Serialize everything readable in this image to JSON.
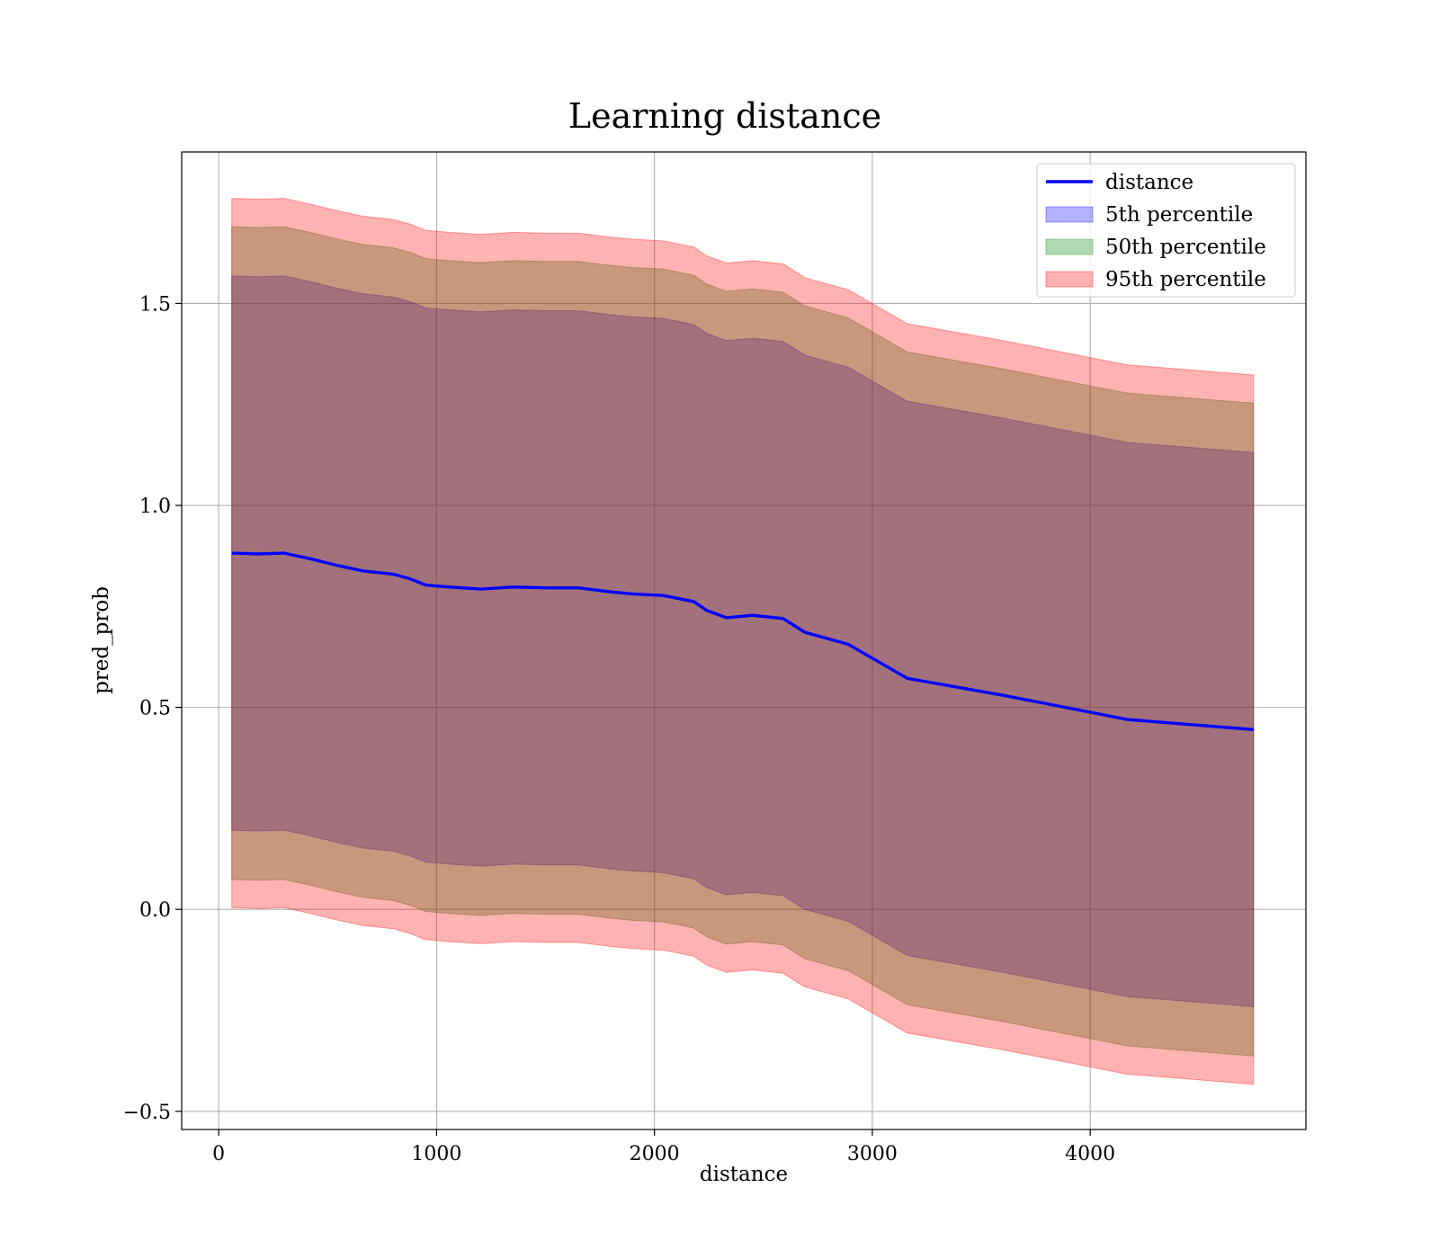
{
  "chart_data": {
    "type": "area",
    "title": "Learning distance",
    "xlabel": "distance",
    "ylabel": "pred_prob",
    "xlim": [
      -170,
      4990
    ],
    "ylim": [
      -0.545,
      1.875
    ],
    "xticks": [
      0,
      1000,
      2000,
      3000,
      4000
    ],
    "xtick_labels": [
      "0",
      "1000",
      "2000",
      "3000",
      "4000"
    ],
    "yticks": [
      -0.5,
      0.0,
      0.5,
      1.0,
      1.5
    ],
    "ytick_labels": [
      "−0.5",
      "0.0",
      "0.5",
      "1.0",
      "1.5"
    ],
    "grid": true,
    "legend_position": "top-right",
    "x": [
      60,
      180,
      300,
      420,
      540,
      660,
      800,
      880,
      950,
      1060,
      1200,
      1350,
      1500,
      1650,
      1800,
      1900,
      2040,
      2180,
      2240,
      2330,
      2450,
      2590,
      2690,
      2890,
      3160,
      3600,
      4000,
      4170,
      4750
    ],
    "series": [
      {
        "name": "distance",
        "kind": "line",
        "color": "#0000ff",
        "values": [
          0.882,
          0.88,
          0.882,
          0.868,
          0.852,
          0.838,
          0.83,
          0.818,
          0.803,
          0.798,
          0.793,
          0.798,
          0.796,
          0.796,
          0.786,
          0.781,
          0.777,
          0.762,
          0.74,
          0.722,
          0.728,
          0.72,
          0.686,
          0.656,
          0.572,
          0.53,
          0.488,
          0.47,
          0.445
        ]
      },
      {
        "name": "5th percentile",
        "kind": "band",
        "color": "#0000ff",
        "opacity": 0.3,
        "lower": [
          0.196,
          0.194,
          0.196,
          0.182,
          0.166,
          0.152,
          0.144,
          0.132,
          0.117,
          0.112,
          0.107,
          0.112,
          0.11,
          0.11,
          0.1,
          0.095,
          0.091,
          0.076,
          0.054,
          0.036,
          0.042,
          0.034,
          0.0,
          -0.03,
          -0.114,
          -0.156,
          -0.198,
          -0.216,
          -0.241
        ],
        "upper": [
          1.568,
          1.566,
          1.568,
          1.554,
          1.538,
          1.524,
          1.516,
          1.504,
          1.489,
          1.484,
          1.479,
          1.484,
          1.482,
          1.482,
          1.472,
          1.467,
          1.463,
          1.448,
          1.426,
          1.408,
          1.414,
          1.406,
          1.372,
          1.342,
          1.258,
          1.216,
          1.174,
          1.156,
          1.131
        ]
      },
      {
        "name": "50th percentile",
        "kind": "band",
        "color": "#008000",
        "opacity": 0.3,
        "lower": [
          0.074,
          0.072,
          0.074,
          0.06,
          0.044,
          0.03,
          0.022,
          0.01,
          -0.005,
          -0.01,
          -0.015,
          -0.01,
          -0.012,
          -0.012,
          -0.022,
          -0.027,
          -0.031,
          -0.046,
          -0.068,
          -0.086,
          -0.08,
          -0.088,
          -0.122,
          -0.152,
          -0.236,
          -0.278,
          -0.32,
          -0.338,
          -0.363
        ],
        "upper": [
          1.69,
          1.688,
          1.69,
          1.676,
          1.66,
          1.646,
          1.638,
          1.626,
          1.611,
          1.606,
          1.601,
          1.606,
          1.604,
          1.604,
          1.594,
          1.589,
          1.585,
          1.57,
          1.548,
          1.53,
          1.536,
          1.528,
          1.494,
          1.464,
          1.38,
          1.338,
          1.296,
          1.278,
          1.253
        ]
      },
      {
        "name": "95th percentile",
        "kind": "band",
        "color": "#ff0000",
        "opacity": 0.3,
        "lower": [
          0.004,
          0.002,
          0.004,
          -0.01,
          -0.026,
          -0.04,
          -0.048,
          -0.06,
          -0.075,
          -0.08,
          -0.085,
          -0.08,
          -0.082,
          -0.082,
          -0.092,
          -0.097,
          -0.101,
          -0.116,
          -0.138,
          -0.156,
          -0.15,
          -0.158,
          -0.192,
          -0.222,
          -0.306,
          -0.348,
          -0.39,
          -0.408,
          -0.433
        ],
        "upper": [
          1.76,
          1.758,
          1.76,
          1.746,
          1.73,
          1.716,
          1.708,
          1.696,
          1.681,
          1.676,
          1.671,
          1.676,
          1.674,
          1.674,
          1.664,
          1.659,
          1.655,
          1.64,
          1.618,
          1.6,
          1.606,
          1.598,
          1.564,
          1.534,
          1.45,
          1.408,
          1.366,
          1.348,
          1.323
        ]
      }
    ]
  }
}
